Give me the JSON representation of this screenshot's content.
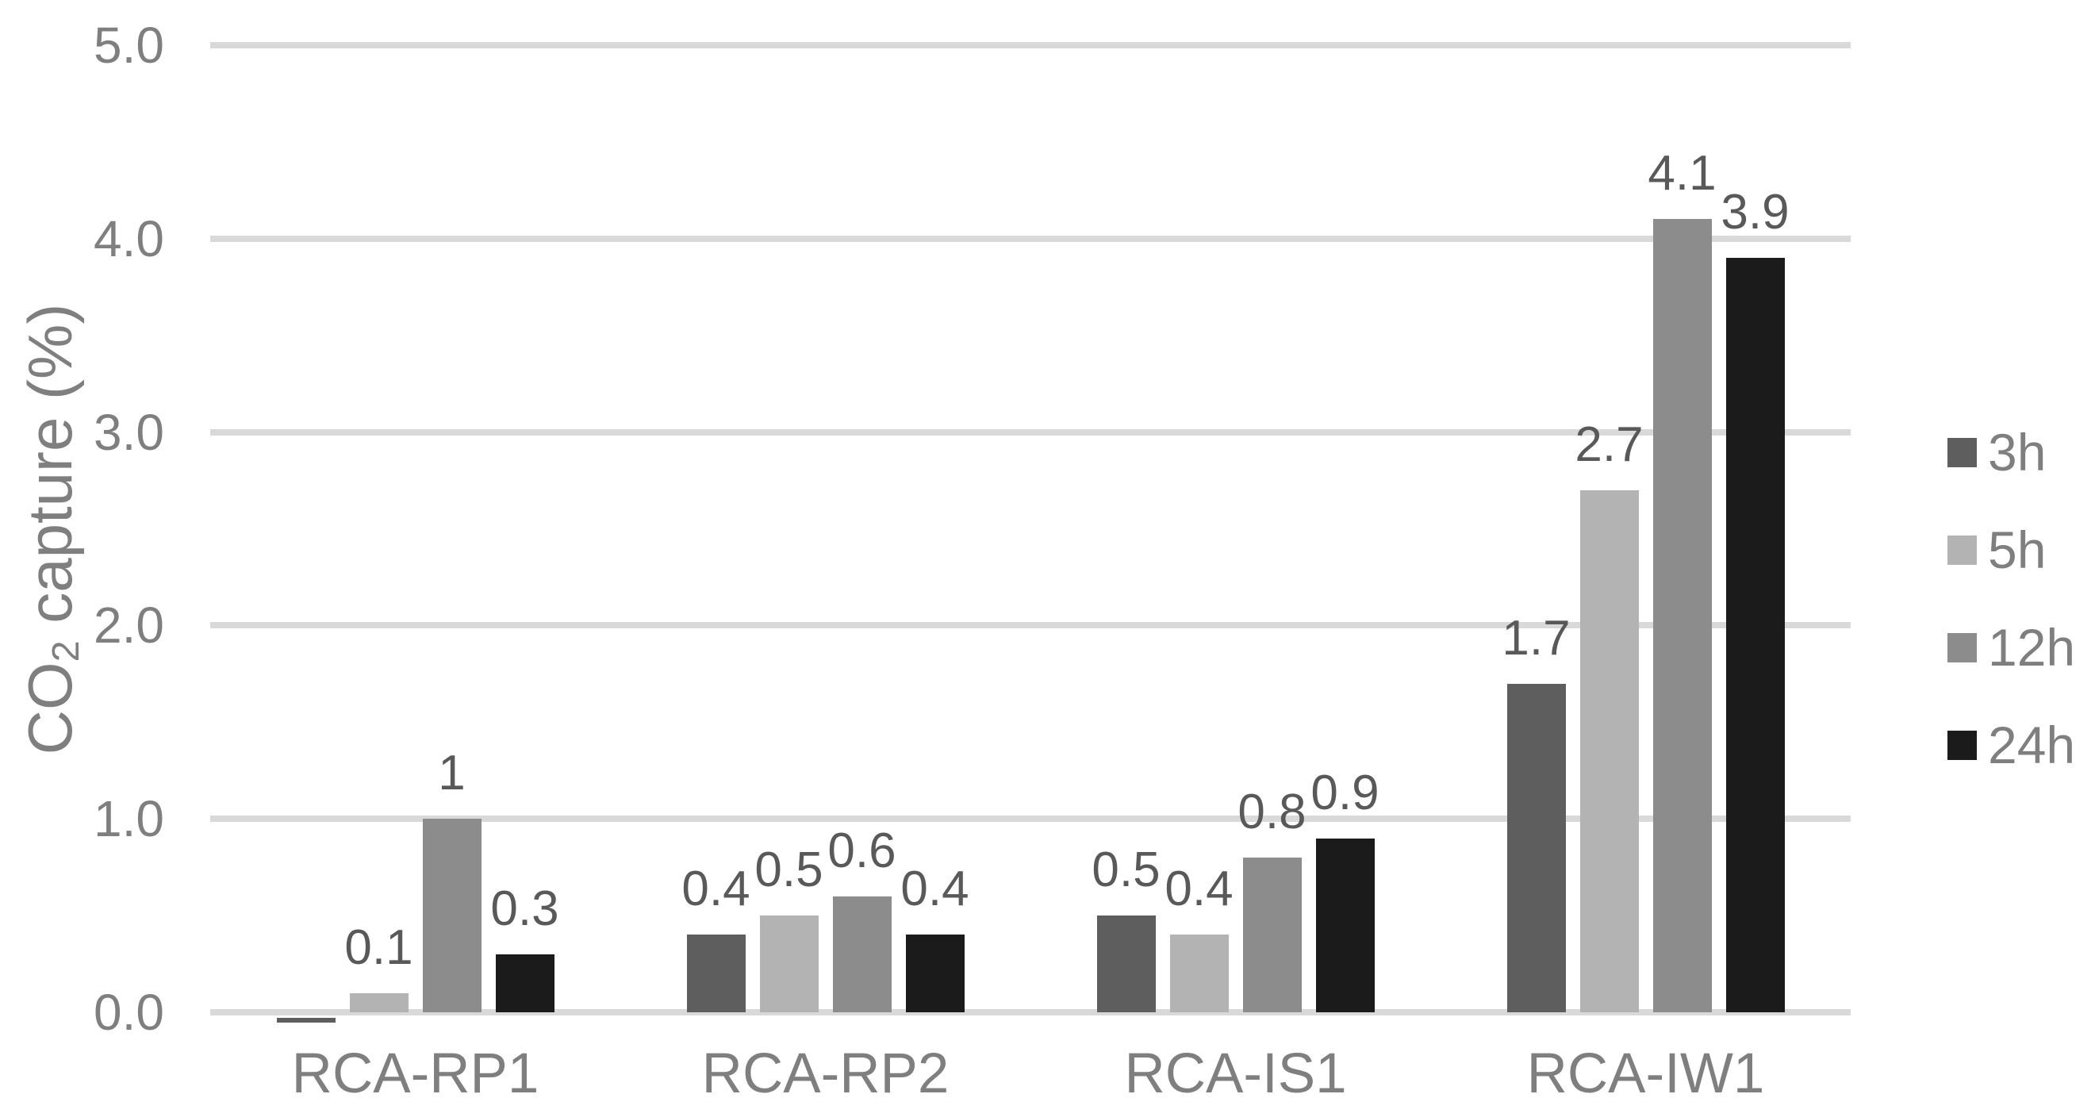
{
  "chart_data": {
    "type": "bar",
    "title": "",
    "categories": [
      "RCA-RP1",
      "RCA-RP2",
      "RCA-IS1",
      "RCA-IW1"
    ],
    "series": [
      {
        "name": "3h",
        "color": "#5e5e5e",
        "values": [
          0,
          0.4,
          0.5,
          1.7
        ],
        "labels": [
          "",
          "0.4",
          "0.5",
          "1.7"
        ]
      },
      {
        "name": "5h",
        "color": "#b3b3b3",
        "values": [
          0.1,
          0.5,
          0.4,
          2.7
        ],
        "labels": [
          "0.1",
          "0.5",
          "0.4",
          "2.7"
        ]
      },
      {
        "name": "12h",
        "color": "#8c8c8c",
        "values": [
          1,
          0.6,
          0.8,
          4.1
        ],
        "labels": [
          "1",
          "0.6",
          "0.8",
          "4.1"
        ]
      },
      {
        "name": "24h",
        "color": "#1b1b1b",
        "values": [
          0.3,
          0.4,
          0.9,
          3.9
        ],
        "labels": [
          "0.3",
          "0.4",
          "0.9",
          "3.9"
        ]
      }
    ],
    "xlabel": "",
    "ylabel": {
      "prefix": "CO",
      "subscript": "2",
      "suffix": " capture (%)"
    },
    "yticks": [
      "0.0",
      "1.0",
      "2.0",
      "3.0",
      "4.0",
      "5.0"
    ],
    "ylim": [
      0,
      5
    ],
    "grid": true,
    "legend_position": "right",
    "colors": {
      "gridline": "#d9d9d9",
      "axis_text": "#7f7f7f",
      "data_label_text": "#595959",
      "background": "#ffffff"
    }
  }
}
